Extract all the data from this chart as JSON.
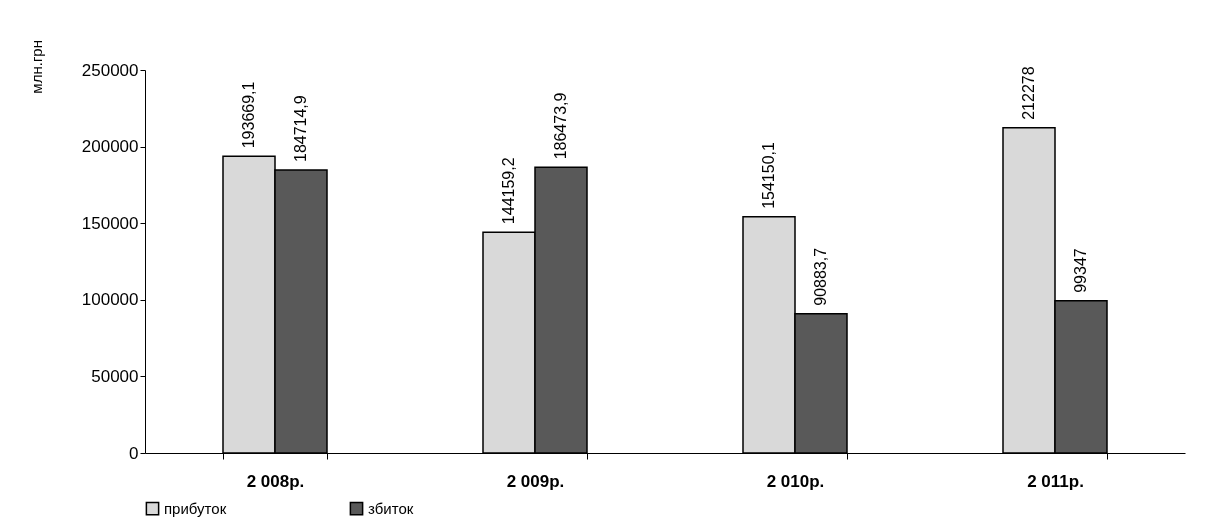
{
  "chart_data": {
    "type": "bar",
    "ylabel": "млн.грн",
    "categories": [
      "2 008р.",
      "2 009р.",
      "2 010р.",
      "2 011р."
    ],
    "series": [
      {
        "name": "прибуток",
        "color": "#d9d9d9",
        "values": [
          193669.1,
          144159.2,
          154150.1,
          212278
        ],
        "value_labels": [
          "193669,1",
          "144159,2",
          "154150,1",
          "212278"
        ]
      },
      {
        "name": "збиток",
        "color": "#595959",
        "values": [
          184714.9,
          186473.9,
          90883.7,
          99347
        ],
        "value_labels": [
          "184714,9",
          "186473,9",
          "90883,7",
          "99347"
        ]
      }
    ],
    "ylim": [
      0,
      250000
    ],
    "yticks": [
      0,
      50000,
      100000,
      150000,
      200000,
      250000
    ],
    "grid": false,
    "legend": "bottom"
  }
}
